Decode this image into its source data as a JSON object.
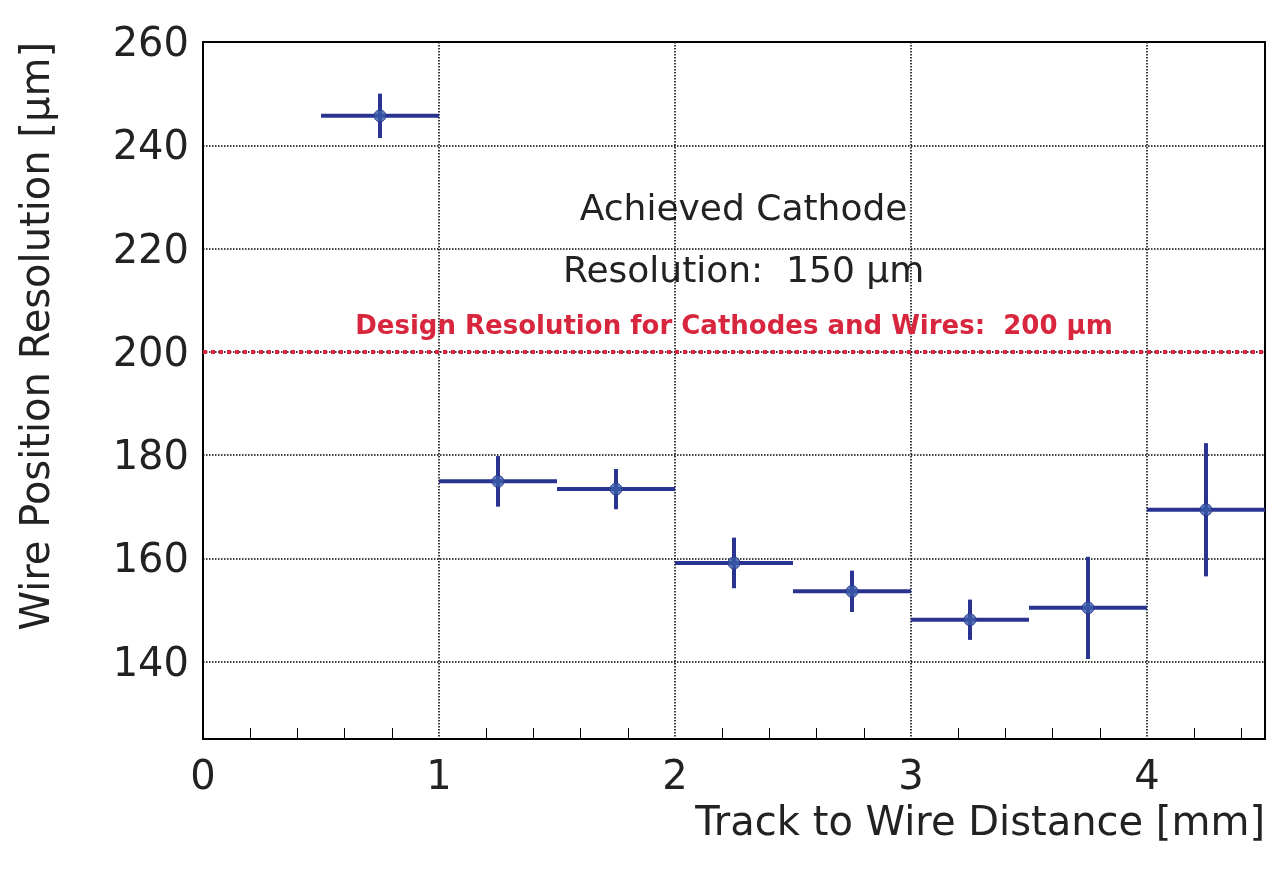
{
  "chart_data": {
    "type": "scatter",
    "xlabel": "Track to Wire Distance [mm]",
    "ylabel": "Wire Position Resolution [µm]",
    "x": [
      0.75,
      1.25,
      1.75,
      2.25,
      2.75,
      3.25,
      3.75,
      4.25
    ],
    "series": [
      {
        "color": "#28348f",
        "values": [
          245.7,
          174.9,
          173.4,
          159.1,
          153.6,
          148.1,
          150.4,
          169.4
        ],
        "errors": [
          4.3,
          4.9,
          3.9,
          4.9,
          4,
          3.9,
          9.9,
          12.9
        ],
        "xerrors": [
          0.25,
          0.25,
          0.25,
          0.25,
          0.25,
          0.25,
          0.25,
          0.25
        ]
      }
    ],
    "xlim": [
      0,
      4.5
    ],
    "xticks": [
      0,
      1,
      2,
      3,
      4
    ],
    "ylim": [
      125,
      260
    ],
    "yticks": [
      140,
      160,
      180,
      200,
      220,
      240,
      260
    ],
    "grid": true,
    "marker": "circle",
    "ref_lines": [
      {
        "axis": "y",
        "value": 200,
        "label": "Design Resolution for Cathodes and Wires:  200 µm",
        "color": "#d7263d",
        "line_style": "dotted"
      }
    ],
    "annotations": [
      "Achieved Cathode\nResolution:  150 µm"
    ]
  }
}
